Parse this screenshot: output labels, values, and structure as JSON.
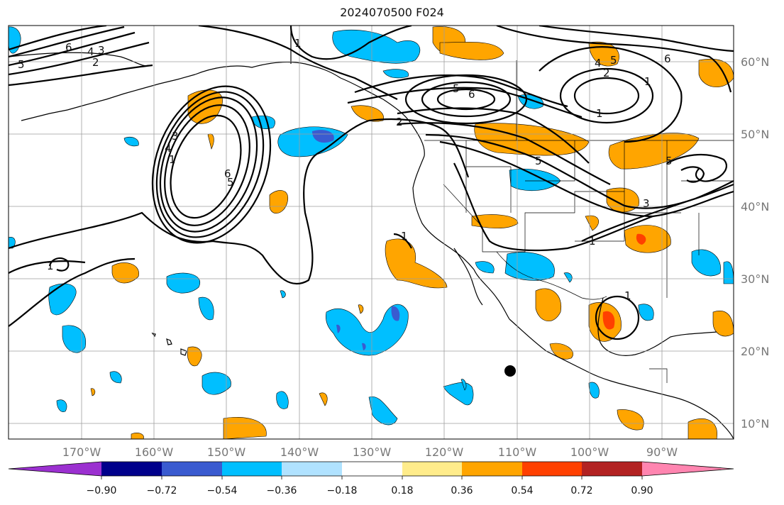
{
  "title": "2024070500 F024",
  "map": {
    "latitude_labels": [
      "60°N",
      "50°N",
      "40°N",
      "30°N",
      "20°N",
      "10°N"
    ],
    "longitude_labels": [
      "170°W",
      "160°W",
      "150°W",
      "140°W",
      "130°W",
      "120°W",
      "110°W",
      "100°W",
      "90°W"
    ],
    "contour_labels": [
      "6",
      "5",
      "4",
      "3",
      "2",
      "1",
      "1",
      "5",
      "6",
      "2",
      "5",
      "1",
      "4",
      "5",
      "2",
      "6",
      "1",
      "3",
      "4",
      "5",
      "6",
      "5",
      "3",
      "1",
      "1",
      "1",
      "1"
    ],
    "colors": {
      "land_lines": "#000000",
      "grid": "#9e9e9e",
      "contour": "#000000"
    }
  },
  "colorbar": {
    "ticks": [
      "−0.90",
      "−0.72",
      "−0.54",
      "−0.36",
      "−0.18",
      "0.18",
      "0.36",
      "0.54",
      "0.72",
      "0.90"
    ],
    "colors": [
      "#9b30d0",
      "#00008b",
      "#3a5bd0",
      "#00bfff",
      "#b0e2ff",
      "#ffffff",
      "#ffec8b",
      "#ffa500",
      "#ff4000",
      "#b22222",
      "#ff85b0"
    ]
  }
}
